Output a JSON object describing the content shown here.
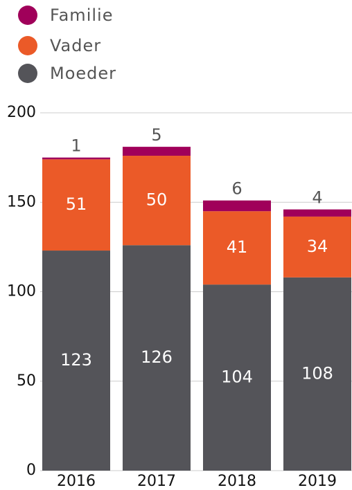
{
  "chart_data": {
    "type": "stacked_bar",
    "categories": [
      "2016",
      "2017",
      "2018",
      "2019"
    ],
    "series": [
      {
        "name": "Moeder",
        "color": "#545459",
        "values": [
          123,
          126,
          104,
          108
        ]
      },
      {
        "name": "Vader",
        "color": "#eb5a28",
        "values": [
          51,
          50,
          41,
          34
        ]
      },
      {
        "name": "Familie",
        "color": "#a0005a",
        "values": [
          1,
          5,
          6,
          4
        ]
      }
    ],
    "ylim": [
      0,
      200
    ],
    "yticks": [
      0,
      50,
      100,
      150,
      200
    ],
    "grid": true
  }
}
